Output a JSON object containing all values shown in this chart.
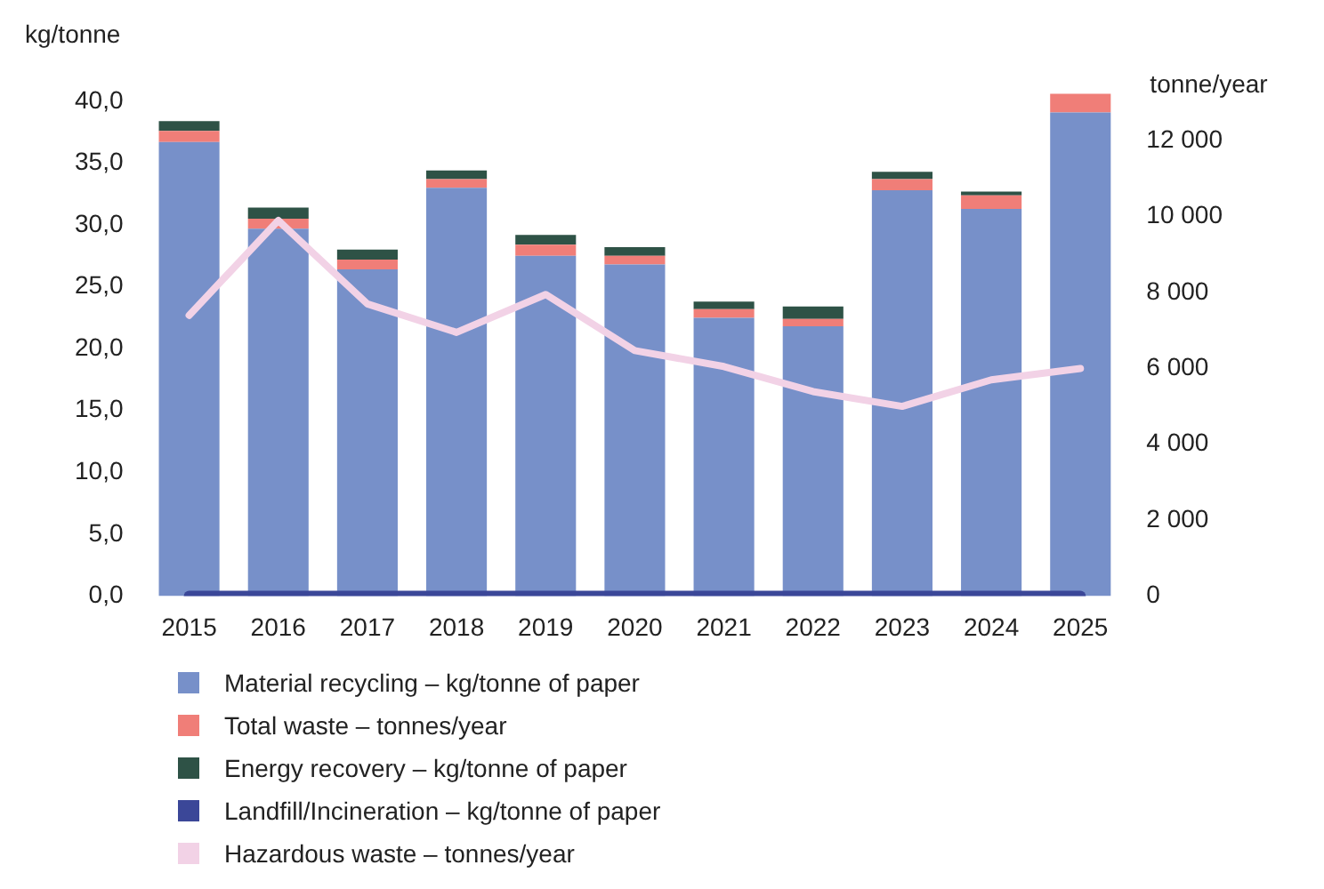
{
  "chart_data": {
    "type": "bar",
    "stacked": true,
    "ylabel": "kg/tonne",
    "y2label": "tonne/year",
    "categories": [
      "2015",
      "2016",
      "2017",
      "2018",
      "2019",
      "2020",
      "2021",
      "2022",
      "2023",
      "2024",
      "2025"
    ],
    "series": [
      {
        "name": "Material recycling – kg/tonne of paper",
        "color": "#7790c9",
        "values": [
          36.7,
          29.7,
          26.4,
          33.0,
          27.5,
          26.8,
          22.5,
          21.8,
          32.8,
          31.3,
          39.1
        ]
      },
      {
        "name": "Total waste – tonnes/year",
        "color": "#f07e78",
        "values": [
          0.9,
          0.8,
          0.8,
          0.7,
          0.9,
          0.7,
          0.7,
          0.6,
          0.9,
          1.1,
          1.5
        ]
      },
      {
        "name": "Energy recovery – kg/tonne of paper",
        "color": "#2e5246",
        "values": [
          0.8,
          0.9,
          0.8,
          0.7,
          0.8,
          0.7,
          0.6,
          1.0,
          0.6,
          0.3,
          0
        ]
      },
      {
        "name": "Landfill/Incineration – kg/tonne of paper",
        "type": "line",
        "color": "#3b4798",
        "values": [
          0,
          0,
          0,
          0,
          0,
          0,
          0,
          0,
          0,
          0,
          0
        ]
      },
      {
        "name": "Hazardous waste – tonnes/year",
        "type": "line",
        "axis": "y2",
        "color": "#f2d2e6",
        "values": [
          7400,
          9900,
          7700,
          6950,
          7950,
          6470,
          6050,
          5390,
          5000,
          5700,
          6000
        ]
      }
    ],
    "ylim": [
      0,
      41
    ],
    "yticks": [
      {
        "value": 0,
        "label": "0,0"
      },
      {
        "value": 5,
        "label": "5,0"
      },
      {
        "value": 10,
        "label": "10,0"
      },
      {
        "value": 15,
        "label": "15,0"
      },
      {
        "value": 20,
        "label": "20,0"
      },
      {
        "value": 25,
        "label": "25,0"
      },
      {
        "value": 30,
        "label": "30,0"
      },
      {
        "value": 35,
        "label": "35,0"
      },
      {
        "value": 40,
        "label": "40,0"
      }
    ],
    "y2lim": [
      0,
      13370
    ],
    "y2ticks": [
      0,
      {
        "value": 2000,
        "label": "2 000"
      },
      {
        "value": 4000,
        "label": "4 000"
      },
      {
        "value": 6000,
        "label": "6 000"
      },
      {
        "value": 8000,
        "label": "8 000"
      },
      {
        "value": 10000,
        "label": "10 000"
      },
      {
        "value": 12000,
        "label": "12 000"
      }
    ],
    "grid": false,
    "legend": "bottom",
    "marker": "none"
  }
}
